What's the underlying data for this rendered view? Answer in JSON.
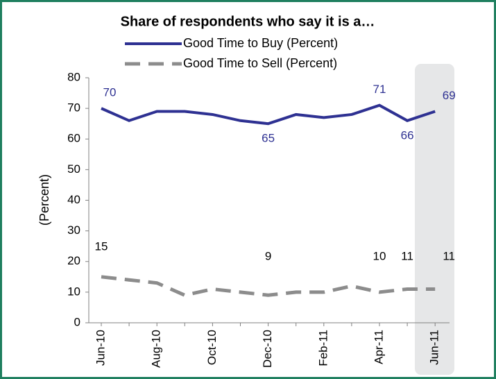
{
  "chart_data": {
    "type": "line",
    "title": "Share of respondents who say it is a…",
    "y_label": "(Percent)",
    "categories": [
      "Jun-10",
      null,
      "Aug-10",
      null,
      "Oct-10",
      null,
      "Dec-10",
      null,
      "Feb-11",
      null,
      "Apr-11",
      null,
      "Jun-11"
    ],
    "series": [
      {
        "name": "Good Time to Buy (Percent)",
        "color": "#2e3192",
        "dash": false,
        "values": [
          70,
          66,
          69,
          69,
          68,
          66,
          65,
          68,
          67,
          68,
          71,
          66,
          69
        ],
        "value_labels": [
          "70",
          null,
          null,
          null,
          null,
          null,
          "65",
          null,
          null,
          null,
          "71",
          "66",
          "69"
        ]
      },
      {
        "name": "Good Time to Sell (Percent)",
        "color": "#8c8c8c",
        "dash": true,
        "values": [
          15,
          14,
          13,
          9,
          11,
          10,
          9,
          10,
          10,
          12,
          10,
          11,
          11
        ],
        "value_labels": [
          "15",
          null,
          null,
          null,
          null,
          null,
          "9",
          null,
          null,
          null,
          "10",
          "11",
          "11"
        ]
      }
    ],
    "ylim": [
      0,
      80
    ],
    "yticks": [
      0,
      10,
      20,
      30,
      40,
      50,
      60,
      70,
      80
    ],
    "grid": false
  }
}
